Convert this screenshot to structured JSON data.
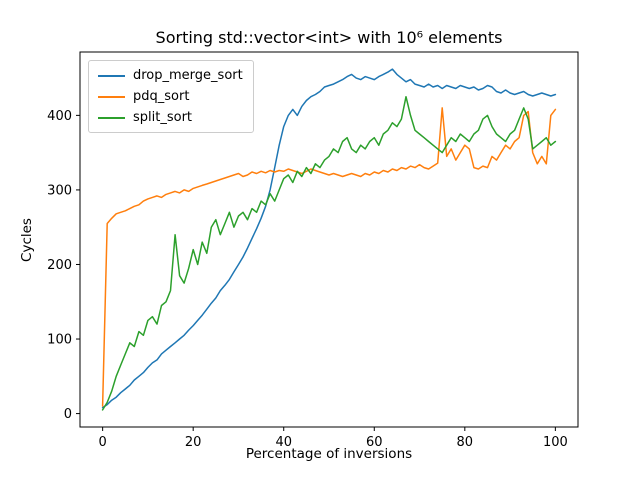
{
  "chart_data": {
    "type": "line",
    "title": "Sorting std::vector<int> with 10⁶ elements",
    "xlabel": "Percentage of inversions",
    "ylabel": "Cycles",
    "xlim": [
      -5,
      105
    ],
    "ylim": [
      -18,
      485
    ],
    "xticks": [
      0,
      20,
      40,
      60,
      80,
      100
    ],
    "yticks": [
      0,
      100,
      200,
      300,
      400
    ],
    "grid": false,
    "legend_position": "upper-left",
    "x": [
      0,
      1,
      2,
      3,
      4,
      5,
      6,
      7,
      8,
      9,
      10,
      11,
      12,
      13,
      14,
      15,
      16,
      17,
      18,
      19,
      20,
      21,
      22,
      23,
      24,
      25,
      26,
      27,
      28,
      29,
      30,
      31,
      32,
      33,
      34,
      35,
      36,
      37,
      38,
      39,
      40,
      41,
      42,
      43,
      44,
      45,
      46,
      47,
      48,
      49,
      50,
      51,
      52,
      53,
      54,
      55,
      56,
      57,
      58,
      59,
      60,
      61,
      62,
      63,
      64,
      65,
      66,
      67,
      68,
      69,
      70,
      71,
      72,
      73,
      74,
      75,
      76,
      77,
      78,
      79,
      80,
      81,
      82,
      83,
      84,
      85,
      86,
      87,
      88,
      89,
      90,
      91,
      92,
      93,
      94,
      95,
      96,
      97,
      98,
      99,
      100
    ],
    "series": [
      {
        "name": "drop_merge_sort",
        "color": "#1f77b4",
        "values": [
          8,
          12,
          18,
          22,
          28,
          33,
          38,
          45,
          50,
          55,
          62,
          68,
          72,
          80,
          85,
          90,
          95,
          100,
          105,
          112,
          118,
          125,
          132,
          140,
          148,
          155,
          165,
          172,
          180,
          190,
          200,
          210,
          222,
          235,
          248,
          262,
          278,
          300,
          330,
          360,
          385,
          400,
          408,
          400,
          412,
          420,
          425,
          428,
          432,
          438,
          440,
          442,
          445,
          448,
          452,
          455,
          450,
          448,
          452,
          450,
          448,
          452,
          455,
          458,
          462,
          455,
          450,
          445,
          448,
          442,
          440,
          438,
          442,
          438,
          440,
          436,
          440,
          438,
          436,
          440,
          438,
          436,
          438,
          434,
          436,
          440,
          438,
          432,
          430,
          434,
          430,
          428,
          430,
          432,
          428,
          426,
          428,
          430,
          428,
          426,
          428
        ]
      },
      {
        "name": "pdq_sort",
        "color": "#ff7f0e",
        "values": [
          10,
          255,
          262,
          268,
          270,
          272,
          275,
          278,
          280,
          285,
          288,
          290,
          292,
          290,
          294,
          296,
          298,
          296,
          300,
          298,
          302,
          304,
          306,
          308,
          310,
          312,
          314,
          316,
          318,
          320,
          322,
          318,
          320,
          324,
          322,
          325,
          323,
          326,
          324,
          326,
          325,
          328,
          326,
          324,
          322,
          325,
          328,
          326,
          324,
          322,
          320,
          322,
          320,
          318,
          320,
          322,
          320,
          318,
          322,
          320,
          324,
          322,
          326,
          324,
          328,
          326,
          330,
          328,
          332,
          330,
          334,
          330,
          328,
          332,
          336,
          410,
          345,
          355,
          340,
          350,
          360,
          355,
          330,
          328,
          332,
          330,
          345,
          340,
          350,
          360,
          355,
          365,
          370,
          400,
          405,
          350,
          335,
          345,
          335,
          400,
          408
        ]
      },
      {
        "name": "split_sort",
        "color": "#2ca02c",
        "values": [
          5,
          15,
          30,
          50,
          65,
          80,
          95,
          90,
          110,
          105,
          125,
          130,
          120,
          145,
          150,
          165,
          240,
          185,
          175,
          195,
          220,
          200,
          230,
          215,
          250,
          260,
          240,
          255,
          270,
          250,
          265,
          270,
          260,
          275,
          270,
          285,
          280,
          295,
          285,
          300,
          315,
          320,
          310,
          325,
          318,
          330,
          322,
          335,
          330,
          340,
          345,
          355,
          350,
          365,
          370,
          355,
          350,
          360,
          355,
          365,
          370,
          360,
          375,
          380,
          390,
          385,
          395,
          425,
          400,
          380,
          375,
          370,
          365,
          360,
          355,
          350,
          360,
          370,
          365,
          375,
          370,
          365,
          375,
          380,
          395,
          400,
          385,
          375,
          370,
          365,
          375,
          380,
          395,
          410,
          395,
          355,
          360,
          365,
          370,
          360,
          365
        ]
      }
    ]
  }
}
